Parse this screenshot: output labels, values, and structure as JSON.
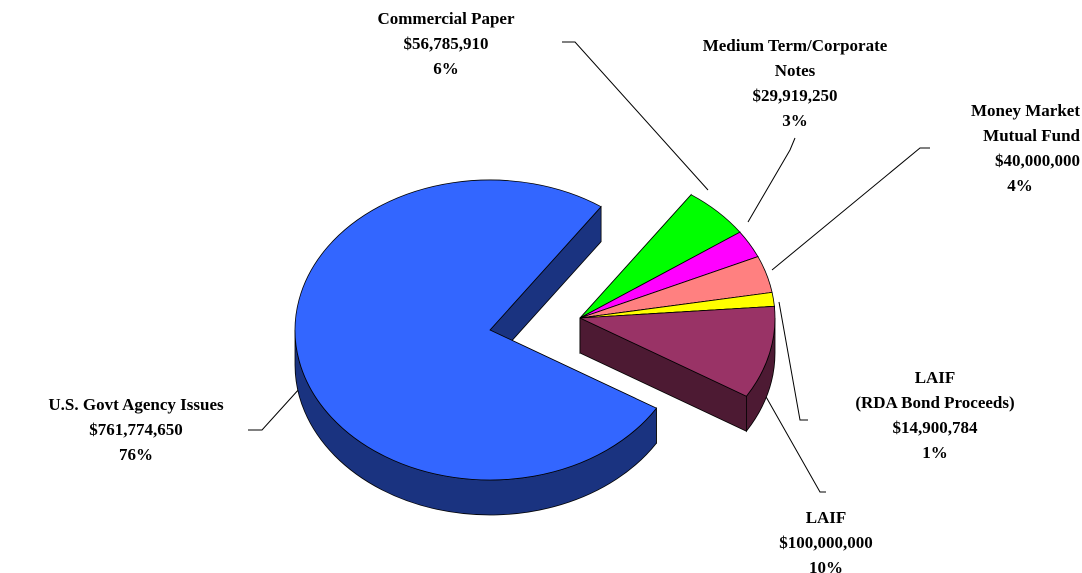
{
  "chart_data": {
    "type": "pie3d",
    "categories": [
      "U.S. Govt Agency Issues",
      "Commercial Paper",
      "Medium Term/Corporate\nNotes",
      "Money Market\nMutual Fund",
      "LAIF\n(RDA Bond Proceeds)",
      "LAIF"
    ],
    "values": [
      761774650,
      56785910,
      29919250,
      40000000,
      14900784,
      100000000
    ],
    "value_labels": [
      "$761,774,650",
      "$56,785,910",
      "$29,919,250",
      "$40,000,000",
      "$14,900,784",
      "$100,000,000"
    ],
    "percents": [
      76,
      6,
      3,
      4,
      1,
      10
    ],
    "percent_labels": [
      "76%",
      "6%",
      "3%",
      "4%",
      "1%",
      "10%"
    ],
    "colors": [
      "#3366ff",
      "#00ff00",
      "#ff00ff",
      "#ff8080",
      "#ffff00",
      "#993366"
    ]
  }
}
